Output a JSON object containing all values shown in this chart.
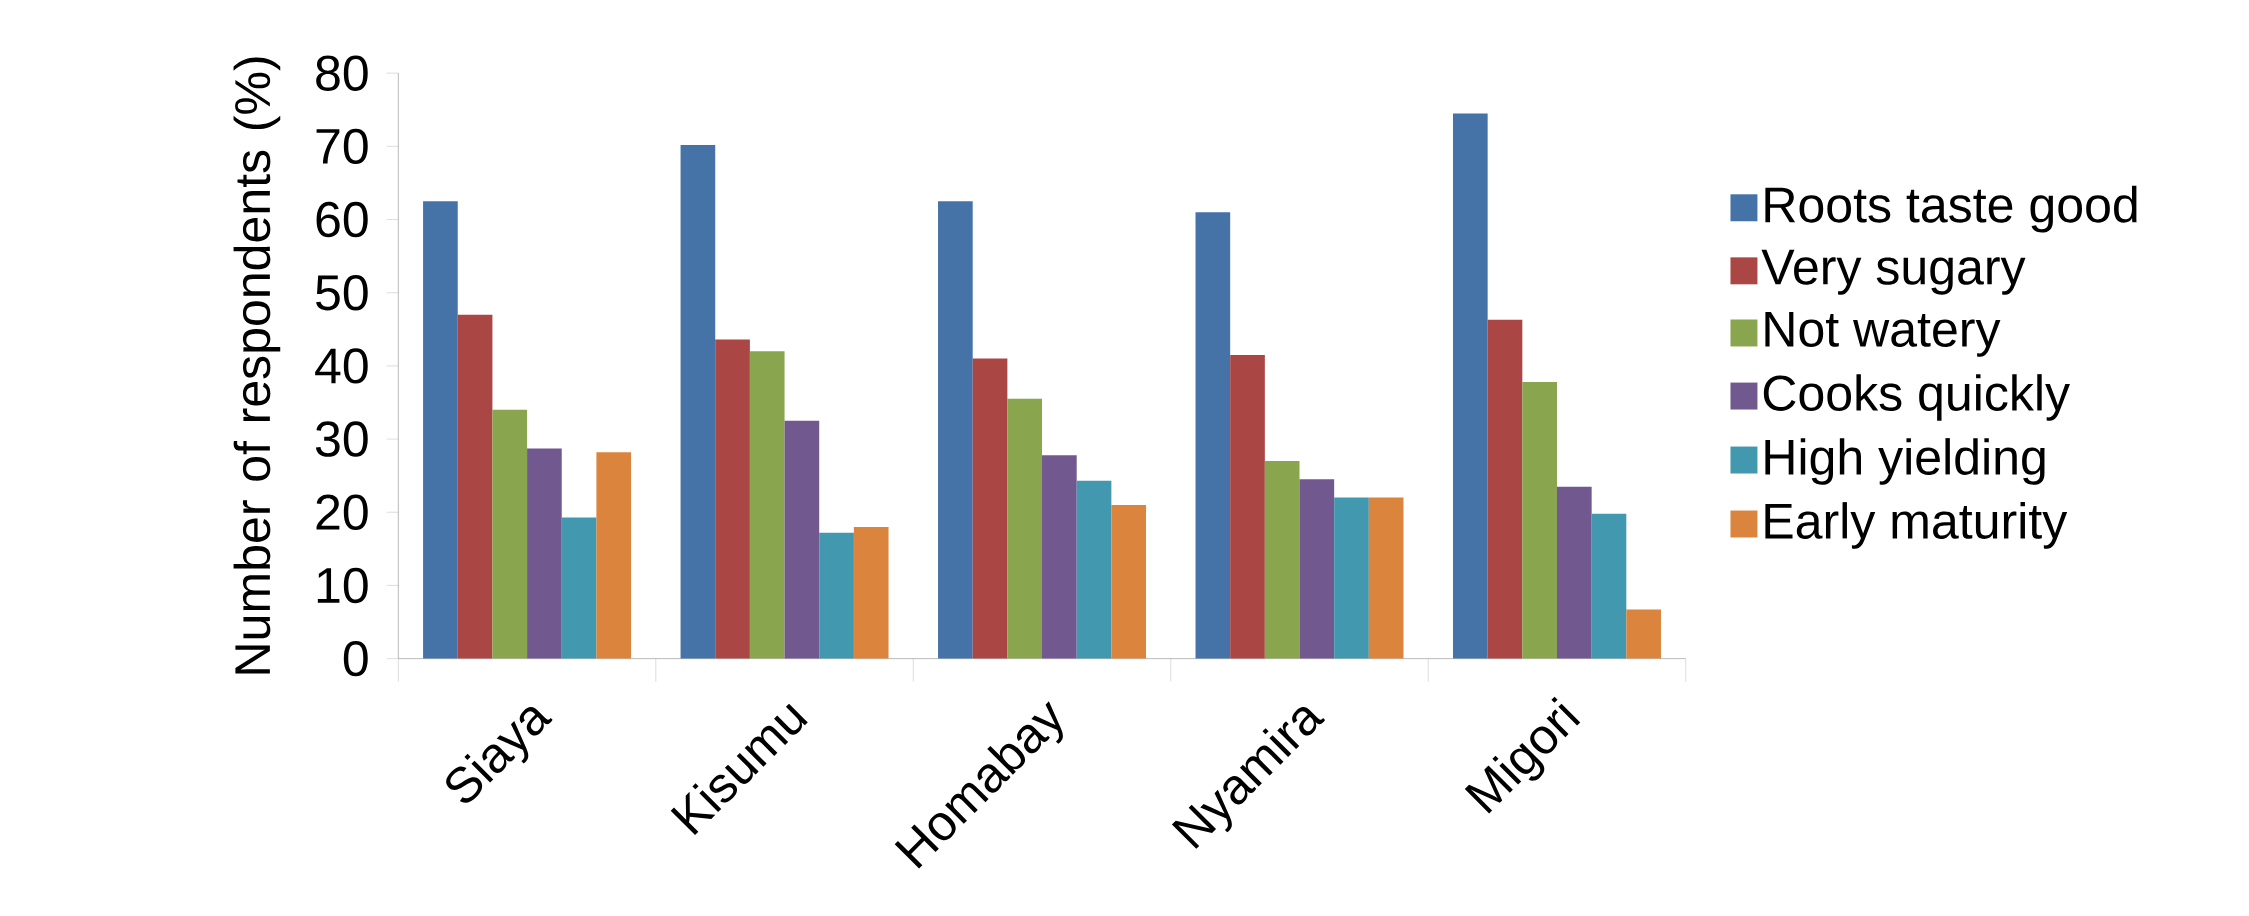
{
  "chart_data": {
    "type": "bar",
    "ylabel": "Number of respondents (%)",
    "categories": [
      "Siaya",
      "Kisumu",
      "Homabay",
      "Nyamira",
      "Migori"
    ],
    "series": [
      {
        "name": "Roots taste good",
        "color": "#4572a7",
        "values": [
          62.5,
          70.2,
          62.5,
          61,
          74.5
        ]
      },
      {
        "name": "Very sugary",
        "color": "#aa4643",
        "values": [
          47,
          43.6,
          41,
          41.5,
          46.3
        ]
      },
      {
        "name": "Not watery",
        "color": "#89a54e",
        "values": [
          34,
          42,
          35.5,
          27,
          37.8
        ]
      },
      {
        "name": "Cooks quickly",
        "color": "#71588f",
        "values": [
          28.7,
          32.5,
          27.8,
          24.5,
          23.5
        ]
      },
      {
        "name": "High yielding",
        "color": "#4198af",
        "values": [
          19.3,
          17.2,
          24.3,
          22,
          19.8
        ]
      },
      {
        "name": "Early maturity",
        "color": "#db843d",
        "values": [
          28.2,
          18,
          21,
          22,
          6.7
        ]
      }
    ],
    "ylim": [
      0,
      80
    ],
    "yticks": [
      0,
      10,
      20,
      30,
      40,
      50,
      60,
      70,
      80
    ],
    "legend": "right",
    "grid": false
  }
}
